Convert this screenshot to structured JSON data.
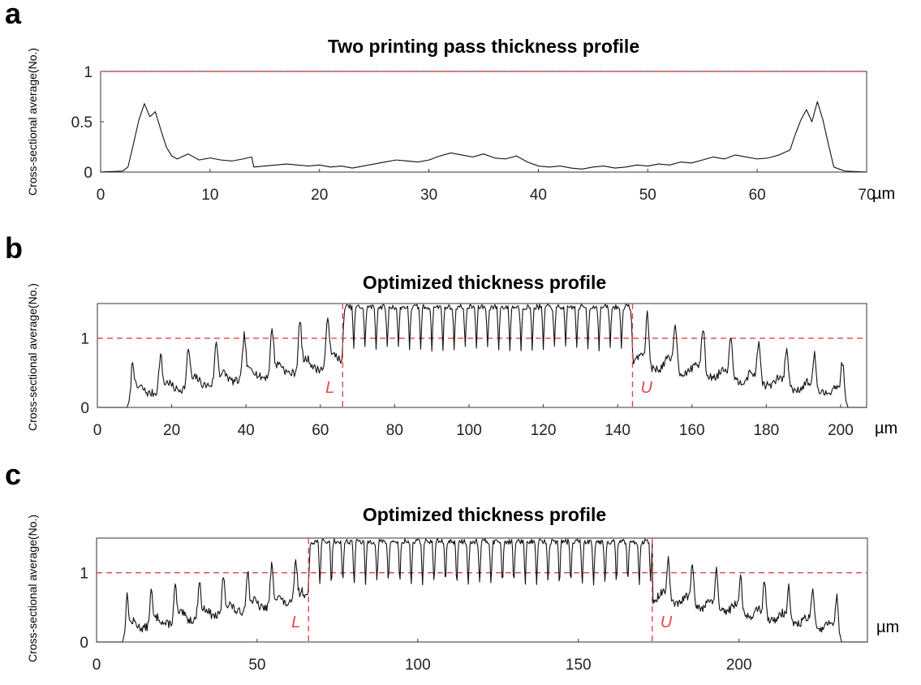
{
  "chart_data": [
    {
      "panel": "a",
      "type": "line",
      "title": "Two printing pass thickness profile",
      "ylabel": "Cross-sectional average(No.)",
      "xunit": "µm",
      "xlim": [
        0,
        70
      ],
      "ylim": [
        0,
        1
      ],
      "xticks": [
        0,
        10,
        20,
        30,
        40,
        50,
        60,
        70
      ],
      "yticks": [
        0,
        0.5,
        1
      ],
      "reference_line_y": 1,
      "reference_color": "#e8434b",
      "series": [
        {
          "x": [
            0,
            2,
            2.5,
            3,
            3.5,
            4,
            4.5,
            5,
            5.5,
            6,
            6.5,
            7,
            8,
            9,
            10,
            11,
            12,
            13,
            13.8,
            14,
            15,
            16,
            17,
            18,
            19,
            20,
            21,
            22,
            23,
            24,
            25,
            26,
            27,
            28,
            29,
            30,
            31,
            32,
            33,
            34,
            35,
            36,
            37,
            38,
            39,
            40,
            41,
            42,
            43,
            44,
            45,
            46,
            47,
            48,
            49,
            50,
            51,
            52,
            53,
            54,
            55,
            56,
            57,
            58,
            59,
            60,
            61,
            62,
            63,
            63.5,
            64,
            64.5,
            65,
            65.5,
            66,
            66.5,
            67,
            68,
            70
          ],
          "y": [
            0,
            0.01,
            0.05,
            0.28,
            0.52,
            0.68,
            0.55,
            0.6,
            0.42,
            0.25,
            0.16,
            0.13,
            0.18,
            0.12,
            0.14,
            0.12,
            0.11,
            0.13,
            0.15,
            0.05,
            0.06,
            0.07,
            0.08,
            0.07,
            0.06,
            0.07,
            0.05,
            0.06,
            0.04,
            0.06,
            0.08,
            0.1,
            0.12,
            0.11,
            0.1,
            0.12,
            0.16,
            0.19,
            0.17,
            0.15,
            0.18,
            0.14,
            0.13,
            0.16,
            0.1,
            0.06,
            0.05,
            0.06,
            0.04,
            0.03,
            0.05,
            0.06,
            0.04,
            0.05,
            0.07,
            0.06,
            0.08,
            0.07,
            0.1,
            0.09,
            0.12,
            0.15,
            0.13,
            0.17,
            0.15,
            0.13,
            0.14,
            0.17,
            0.22,
            0.38,
            0.52,
            0.62,
            0.5,
            0.7,
            0.52,
            0.28,
            0.05,
            0.01,
            0
          ]
        }
      ]
    },
    {
      "panel": "b",
      "type": "line",
      "title": "Optimized thickness profile",
      "ylabel": "Cross-sectional average(No.)",
      "xunit": "µm",
      "xlim": [
        0,
        207
      ],
      "ylim": [
        0,
        1.5
      ],
      "xticks": [
        0,
        20,
        40,
        60,
        80,
        100,
        120,
        140,
        160,
        180,
        200
      ],
      "yticks": [
        0,
        1
      ],
      "reference_line_y": 1,
      "reference_color": "#e8434b",
      "bounds": [
        {
          "label": "L",
          "x": 66
        },
        {
          "label": "U",
          "x": 144
        }
      ],
      "profile": {
        "start": 8,
        "end": 202,
        "ridge_period": 7.5,
        "ridge_peak_outer": 0.62,
        "ridge_peak_inner": 1.35,
        "ridge_base": 0.15,
        "middle_period": 3.0,
        "middle_top": 1.45,
        "middle_dip": 0.85
      }
    },
    {
      "panel": "c",
      "type": "line",
      "title": "Optimized thickness profile",
      "ylabel": "Cross-sectional average(No.)",
      "xunit": "µm",
      "xlim": [
        0,
        240
      ],
      "ylim": [
        0,
        1.5
      ],
      "xticks": [
        0,
        50,
        100,
        150,
        200
      ],
      "yticks": [
        0,
        1
      ],
      "reference_line_y": 1,
      "reference_color": "#e8434b",
      "bounds": [
        {
          "label": "L",
          "x": 66
        },
        {
          "label": "U",
          "x": 173
        }
      ],
      "profile": {
        "start": 8,
        "end": 232,
        "ridge_period": 7.5,
        "ridge_peak_outer": 0.62,
        "ridge_peak_inner": 1.2,
        "ridge_base": 0.15,
        "middle_period": 3.55,
        "middle_top": 1.45,
        "middle_dip": 0.85
      }
    }
  ],
  "panels": {
    "a": {
      "letter": "a",
      "title": "Two printing pass thickness profile",
      "ylabel": "Cross-sectional average(No.)",
      "unit": "µm"
    },
    "b": {
      "letter": "b",
      "title": "Optimized thickness profile",
      "ylabel": "Cross-sectional average(No.)",
      "unit": "µm"
    },
    "c": {
      "letter": "c",
      "title": "Optimized thickness profile",
      "ylabel": "Cross-sectional average(No.)",
      "unit": "µm"
    }
  }
}
